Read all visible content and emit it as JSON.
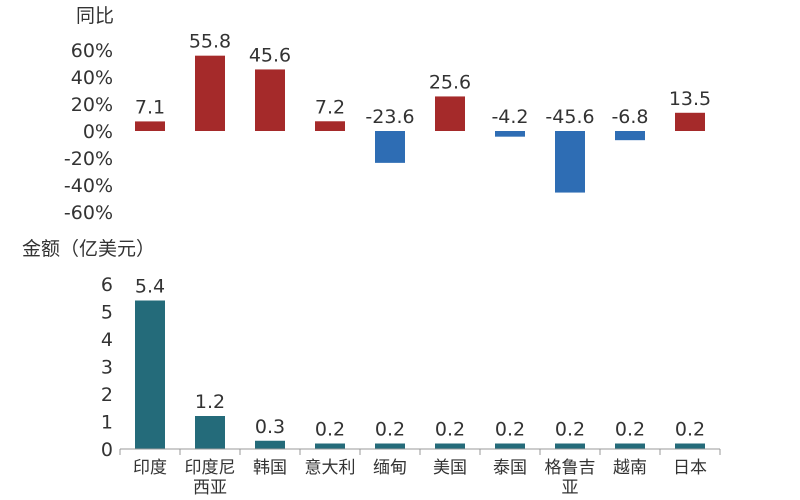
{
  "chart_data": [
    {
      "type": "bar",
      "ylabel": "同比",
      "ylim": [
        -60,
        60
      ],
      "yticks": [
        "60%",
        "40%",
        "20%",
        "0%",
        "-20%",
        "-40%",
        "-60%"
      ],
      "categories": [
        "印度",
        "印度尼西亚",
        "韩国",
        "意大利",
        "缅甸",
        "美国",
        "泰国",
        "格鲁吉亚",
        "越南",
        "日本"
      ],
      "values": [
        7.1,
        55.8,
        45.6,
        7.2,
        -23.6,
        25.6,
        -4.2,
        -45.6,
        -6.8,
        13.5
      ],
      "data_labels": [
        "7.1",
        "55.8",
        "45.6",
        "7.2",
        "-23.6",
        "25.6",
        "-4.2",
        "-45.6",
        "-6.8",
        "13.5"
      ],
      "colors": {
        "positive": "#a52a2a",
        "negative": "#2e6db4"
      },
      "grid": false
    },
    {
      "type": "bar",
      "ylabel": "金额（亿美元）",
      "ylim": [
        0,
        6
      ],
      "yticks": [
        "6",
        "5",
        "4",
        "3",
        "2",
        "1",
        "0"
      ],
      "categories": [
        "印度",
        "印度尼西亚",
        "韩国",
        "意大利",
        "缅甸",
        "美国",
        "泰国",
        "格鲁吉亚",
        "越南",
        "日本"
      ],
      "category_lines": [
        [
          "印度"
        ],
        [
          "印度尼",
          "西亚"
        ],
        [
          "韩国"
        ],
        [
          "意大利"
        ],
        [
          "缅甸"
        ],
        [
          "美国"
        ],
        [
          "泰国"
        ],
        [
          "格鲁吉",
          "亚"
        ],
        [
          "越南"
        ],
        [
          "日本"
        ]
      ],
      "values": [
        5.4,
        1.2,
        0.3,
        0.2,
        0.2,
        0.2,
        0.2,
        0.2,
        0.2,
        0.2
      ],
      "data_labels": [
        "5.4",
        "1.2",
        "0.3",
        "0.2",
        "0.2",
        "0.2",
        "0.2",
        "0.2",
        "0.2",
        "0.2"
      ],
      "colors": {
        "bar": "#246b7a"
      },
      "grid": false
    }
  ]
}
